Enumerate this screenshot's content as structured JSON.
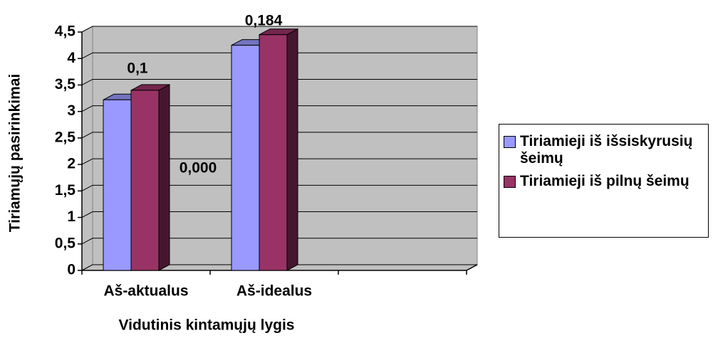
{
  "chart_data": {
    "type": "bar3d",
    "y_label": "Tiriamųjų pasirinkimai",
    "x_label": "Vidutinis kintamųjų lygis",
    "categories": [
      "Aš-aktualus",
      "Aš-idealus",
      null
    ],
    "series": [
      {
        "name": "Tiriamieji iš išsiskyrusių šeimų",
        "color": "#9999ff",
        "values": [
          3.22,
          4.25,
          null
        ]
      },
      {
        "name": "Tiriamieji iš pilnų šeimų",
        "color": "#993366",
        "values": [
          3.4,
          4.45,
          null
        ]
      }
    ],
    "annotations": [
      "0,1",
      "0,184",
      "0,000"
    ],
    "ylim": [
      0,
      4.5
    ],
    "yticks": [
      0,
      {
        "value": 0.5,
        "label": "0,5"
      },
      1,
      {
        "value": 1.5,
        "label": "1,5"
      },
      2,
      {
        "value": 2.5,
        "label": "2,5"
      },
      3,
      {
        "value": 3.5,
        "label": "3,5"
      },
      4,
      {
        "value": 4.5,
        "label": "4,5"
      }
    ],
    "grid": true,
    "legend": "right",
    "wall_color": "#c0c0c0"
  }
}
